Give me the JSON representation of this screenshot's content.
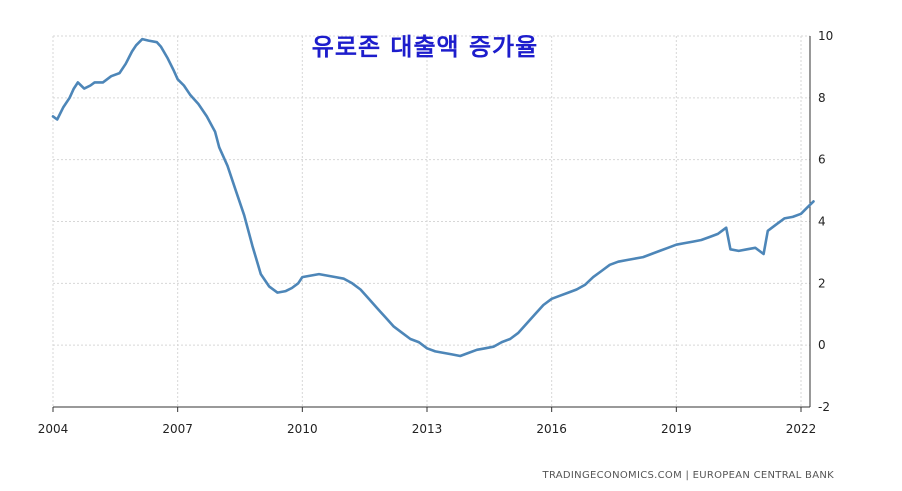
{
  "chart_data": {
    "type": "line",
    "title": "유로존 대출액 증가율",
    "source": "TRADINGECONOMICS.COM | EUROPEAN CENTRAL BANK",
    "xlabel": "",
    "ylabel": "",
    "x_ticks": [
      "2004",
      "2007",
      "2010",
      "2013",
      "2016",
      "2019",
      "2022"
    ],
    "xlim": [
      2004,
      2022.4
    ],
    "y_ticks": [
      "-2",
      "0",
      "2",
      "4",
      "6",
      "8",
      "10"
    ],
    "ylim": [
      -2,
      10
    ],
    "grid": true,
    "legend": "none",
    "line_color": "#4d86b8",
    "series": [
      {
        "x": [
          2004.0,
          2004.1,
          2004.25,
          2004.4,
          2004.5,
          2004.6,
          2004.75,
          2004.9,
          2005.0,
          2005.2,
          2005.4,
          2005.6,
          2005.75,
          2005.9,
          2006.0,
          2006.15,
          2006.3,
          2006.5,
          2006.6,
          2006.75,
          2006.9,
          2007.0,
          2007.15,
          2007.3,
          2007.5,
          2007.7,
          2007.9,
          2008.0,
          2008.2,
          2008.4,
          2008.6,
          2008.8,
          2009.0,
          2009.2,
          2009.4,
          2009.6,
          2009.75,
          2009.9,
          2010.0,
          2010.2,
          2010.4,
          2010.6,
          2010.8,
          2011.0,
          2011.2,
          2011.4,
          2011.6,
          2011.8,
          2012.0,
          2012.2,
          2012.4,
          2012.6,
          2012.8,
          2013.0,
          2013.2,
          2013.4,
          2013.6,
          2013.8,
          2014.0,
          2014.2,
          2014.4,
          2014.6,
          2014.8,
          2015.0,
          2015.2,
          2015.4,
          2015.6,
          2015.8,
          2016.0,
          2016.2,
          2016.4,
          2016.6,
          2016.8,
          2017.0,
          2017.2,
          2017.4,
          2017.6,
          2017.8,
          2018.0,
          2018.2,
          2018.4,
          2018.6,
          2018.8,
          2019.0,
          2019.2,
          2019.4,
          2019.6,
          2019.8,
          2020.0,
          2020.1,
          2020.2,
          2020.3,
          2020.5,
          2020.7,
          2020.9,
          2021.0,
          2021.1,
          2021.2,
          2021.4,
          2021.6,
          2021.8,
          2022.0,
          2022.15,
          2022.3
        ],
        "y": [
          7.4,
          7.3,
          7.7,
          8.0,
          8.3,
          8.5,
          8.3,
          8.4,
          8.5,
          8.5,
          8.7,
          8.8,
          9.1,
          9.5,
          9.7,
          9.9,
          9.85,
          9.8,
          9.65,
          9.3,
          8.9,
          8.6,
          8.4,
          8.1,
          7.8,
          7.4,
          6.9,
          6.4,
          5.8,
          5.0,
          4.2,
          3.2,
          2.3,
          1.9,
          1.7,
          1.75,
          1.85,
          2.0,
          2.2,
          2.25,
          2.3,
          2.25,
          2.2,
          2.15,
          2.0,
          1.8,
          1.5,
          1.2,
          0.9,
          0.6,
          0.4,
          0.2,
          0.1,
          -0.1,
          -0.2,
          -0.25,
          -0.3,
          -0.35,
          -0.25,
          -0.15,
          -0.1,
          -0.05,
          0.1,
          0.2,
          0.4,
          0.7,
          1.0,
          1.3,
          1.5,
          1.6,
          1.7,
          1.8,
          1.95,
          2.2,
          2.4,
          2.6,
          2.7,
          2.75,
          2.8,
          2.85,
          2.95,
          3.05,
          3.15,
          3.25,
          3.3,
          3.35,
          3.4,
          3.5,
          3.6,
          3.7,
          3.8,
          3.1,
          3.05,
          3.1,
          3.15,
          3.05,
          2.95,
          3.7,
          3.9,
          4.1,
          4.15,
          4.25,
          4.45,
          4.65
        ]
      }
    ]
  }
}
